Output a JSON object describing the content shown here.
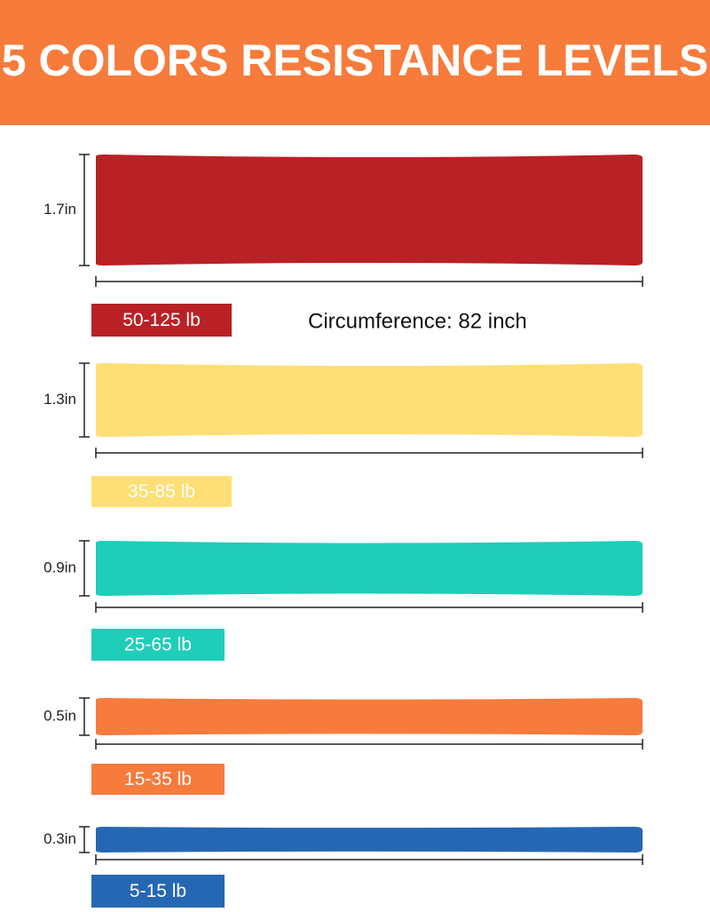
{
  "header": {
    "title": "5 COLORS RESISTANCE LEVELS"
  },
  "circumference": "Circumference: 82 inch",
  "bands": [
    {
      "width": "1.7in",
      "resistance": "50-125 lb",
      "color": "#b92126"
    },
    {
      "width": "1.3in",
      "resistance": "35-85 lb",
      "color": "#fddf76"
    },
    {
      "width": "0.9in",
      "resistance": "25-65 lb",
      "color": "#1fcdb9"
    },
    {
      "width": "0.5in",
      "resistance": "15-35 lb",
      "color": "#f77b3c"
    },
    {
      "width": "0.3in",
      "resistance": "5-15 lb",
      "color": "#2667b4"
    }
  ]
}
